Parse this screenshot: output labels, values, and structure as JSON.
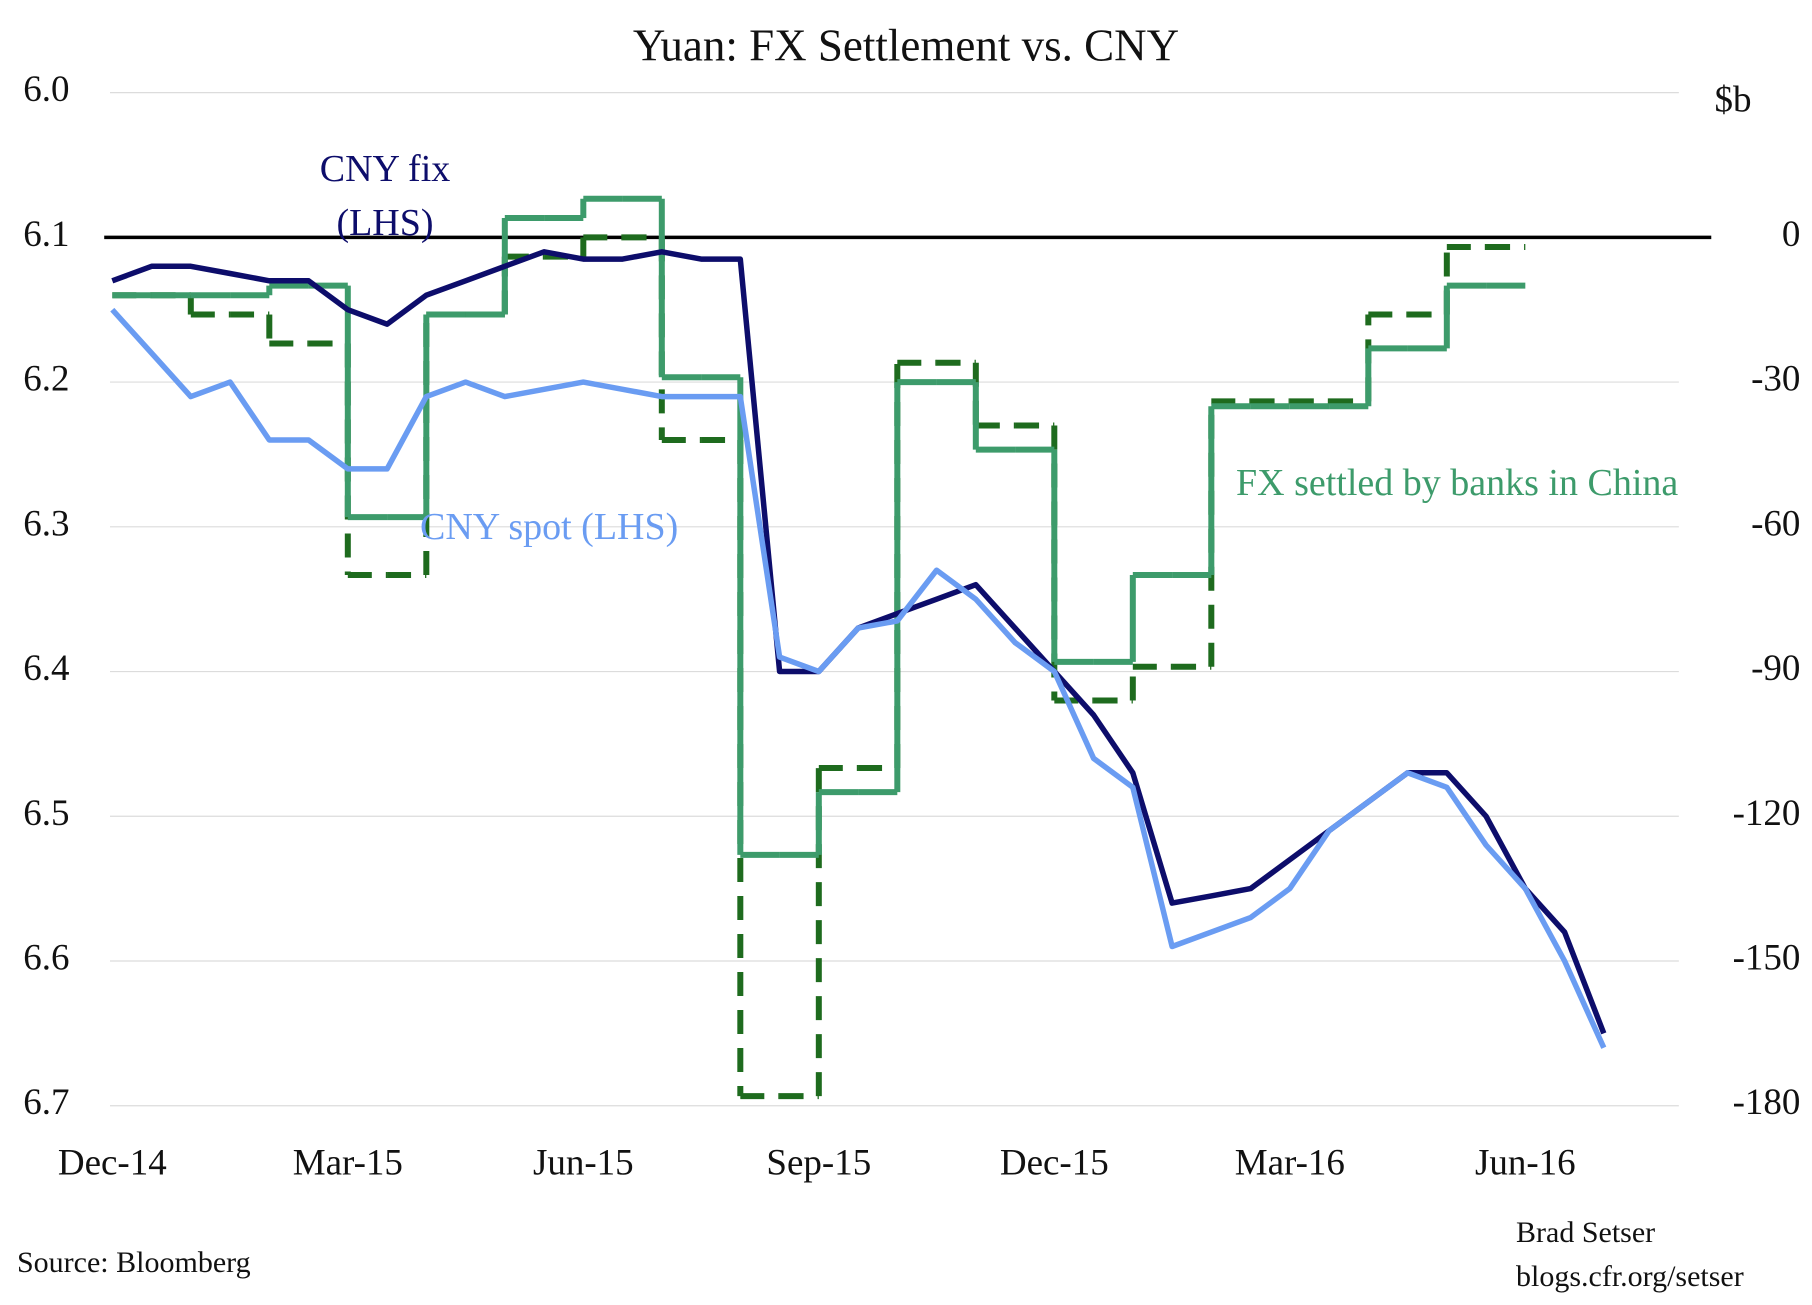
{
  "chart_data": {
    "type": "line",
    "title": "Yuan: FX Settlement vs. CNY",
    "y2_label": "$b",
    "source": "Source: Bloomberg",
    "credit": [
      "Brad Setser",
      "blogs.cfr.org/setser"
    ],
    "categories": [
      "Dec-14",
      null,
      null,
      null,
      null,
      null,
      "Mar-15",
      null,
      null,
      null,
      null,
      null,
      "Jun-15",
      null,
      null,
      null,
      null,
      null,
      "Sep-15",
      null,
      null,
      null,
      null,
      null,
      "Dec-15",
      null,
      null,
      null,
      null,
      null,
      "Mar-16",
      null,
      null,
      null,
      null,
      null,
      "Jun-16",
      null,
      null
    ],
    "ylim": [
      6.7,
      6.0
    ],
    "yticks": [
      {
        "value": 6.0,
        "label": "6.0"
      },
      6.1,
      6.2,
      6.3,
      6.4,
      6.5,
      6.6,
      6.7
    ],
    "y2lim": [
      -180,
      30
    ],
    "y2ticks": [
      0,
      -30,
      -60,
      -90,
      -120,
      -150,
      -180
    ],
    "reference_line": {
      "axis": "y2",
      "value": 0,
      "color": "#000000"
    },
    "grid": true,
    "series": [
      {
        "name": "CNY fix (LHS)",
        "color": "#0d0d6b",
        "values": [
          6.13,
          6.12,
          6.12,
          6.125,
          6.13,
          6.13,
          6.15,
          6.16,
          6.14,
          6.13,
          6.12,
          6.11,
          6.115,
          6.115,
          6.11,
          6.115,
          6.115,
          6.4,
          6.4,
          6.37,
          6.36,
          6.35,
          6.34,
          6.37,
          6.4,
          6.43,
          6.47,
          6.56,
          6.555,
          6.55,
          6.53,
          6.51,
          6.49,
          6.47,
          6.47,
          6.5,
          6.55,
          6.58,
          6.65
        ]
      },
      {
        "name": "CNY spot (LHS)",
        "color": "#6a9cf2",
        "values": [
          6.15,
          6.18,
          6.21,
          6.2,
          6.24,
          6.24,
          6.26,
          6.26,
          6.21,
          6.2,
          6.21,
          6.205,
          6.2,
          6.205,
          6.21,
          6.21,
          6.21,
          6.39,
          6.4,
          6.37,
          6.365,
          6.33,
          6.35,
          6.38,
          6.4,
          6.46,
          6.48,
          6.59,
          6.58,
          6.57,
          6.55,
          6.51,
          6.49,
          6.47,
          6.48,
          6.52,
          6.55,
          6.6,
          6.66
        ]
      },
      {
        "name": "FX settled by banks in China",
        "color": "#3d9b6b",
        "axis": "y2",
        "step": true,
        "values": [
          -12,
          -12,
          -12,
          -12,
          -10,
          -10,
          -58,
          -58,
          -16,
          -16,
          4,
          4,
          8,
          8,
          -29,
          -29,
          -128,
          -128,
          -115,
          -115,
          -30,
          -30,
          -44,
          -44,
          -88,
          -88,
          -70,
          -70,
          -35,
          -35,
          -35,
          -35,
          -23,
          -23,
          -10,
          -10,
          null,
          null,
          null
        ]
      },
      {
        "color": "#1e6b1e",
        "axis": "y2",
        "step": true,
        "dashed": true,
        "values": [
          -12,
          -12,
          -16,
          -16,
          -22,
          -22,
          -70,
          -70,
          -16,
          -16,
          -4,
          -4,
          0,
          0,
          -42,
          -42,
          -178,
          -178,
          -110,
          -110,
          -26,
          -26,
          -39,
          -39,
          -96,
          -96,
          -89,
          -89,
          -34,
          -34,
          -34,
          -34,
          -16,
          -16,
          -2,
          -2,
          null,
          null,
          null
        ]
      }
    ]
  }
}
